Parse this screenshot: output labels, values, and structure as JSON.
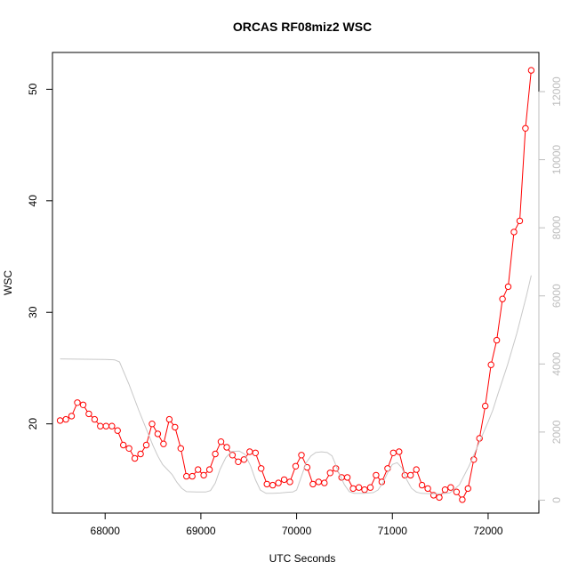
{
  "chart_data": {
    "type": "line",
    "title": "ORCAS RF08miz2 WSC",
    "xlabel": "UTC Seconds",
    "ylabel": "WSC",
    "x_ticks": [
      68000,
      69000,
      70000,
      71000,
      72000
    ],
    "y_ticks": [
      20,
      30,
      40,
      50
    ],
    "y2_ticks": [
      0,
      2000,
      4000,
      6000,
      8000,
      10000,
      12000
    ],
    "xlim": [
      67450,
      72530
    ],
    "ylim": [
      12.0,
      53.3
    ],
    "y2lim": [
      -380,
      13150
    ],
    "series": [
      {
        "axis": "left",
        "color": "#ff0000",
        "marker": "open-circle",
        "points": [
          [
            67530,
            20.3
          ],
          [
            67590,
            20.4
          ],
          [
            67650,
            20.7
          ],
          [
            67710,
            21.9
          ],
          [
            67770,
            21.7
          ],
          [
            67830,
            20.9
          ],
          [
            67890,
            20.4
          ],
          [
            67950,
            19.8
          ],
          [
            68010,
            19.8
          ],
          [
            68070,
            19.8
          ],
          [
            68130,
            19.4
          ],
          [
            68190,
            18.1
          ],
          [
            68250,
            17.8
          ],
          [
            68310,
            16.9
          ],
          [
            68370,
            17.3
          ],
          [
            68430,
            18.1
          ],
          [
            68490,
            20.0
          ],
          [
            68550,
            19.1
          ],
          [
            68610,
            18.2
          ],
          [
            68670,
            20.4
          ],
          [
            68730,
            19.7
          ],
          [
            68790,
            17.8
          ],
          [
            68850,
            15.3
          ],
          [
            68910,
            15.3
          ],
          [
            68970,
            15.9
          ],
          [
            69030,
            15.4
          ],
          [
            69090,
            15.9
          ],
          [
            69150,
            17.3
          ],
          [
            69210,
            18.4
          ],
          [
            69270,
            17.9
          ],
          [
            69330,
            17.2
          ],
          [
            69390,
            16.6
          ],
          [
            69450,
            16.8
          ],
          [
            69510,
            17.5
          ],
          [
            69570,
            17.4
          ],
          [
            69630,
            16.0
          ],
          [
            69690,
            14.6
          ],
          [
            69750,
            14.5
          ],
          [
            69810,
            14.7
          ],
          [
            69870,
            15.0
          ],
          [
            69930,
            14.8
          ],
          [
            69990,
            16.2
          ],
          [
            70050,
            17.2
          ],
          [
            70110,
            16.1
          ],
          [
            70170,
            14.6
          ],
          [
            70230,
            14.8
          ],
          [
            70290,
            14.7
          ],
          [
            70350,
            15.6
          ],
          [
            70410,
            16.0
          ],
          [
            70470,
            15.2
          ],
          [
            70530,
            15.2
          ],
          [
            70590,
            14.2
          ],
          [
            70650,
            14.3
          ],
          [
            70710,
            14.1
          ],
          [
            70770,
            14.3
          ],
          [
            70830,
            15.4
          ],
          [
            70890,
            14.8
          ],
          [
            70950,
            16.0
          ],
          [
            71010,
            17.4
          ],
          [
            71070,
            17.5
          ],
          [
            71130,
            15.4
          ],
          [
            71190,
            15.4
          ],
          [
            71250,
            15.9
          ],
          [
            71310,
            14.5
          ],
          [
            71370,
            14.2
          ],
          [
            71430,
            13.6
          ],
          [
            71490,
            13.4
          ],
          [
            71550,
            14.1
          ],
          [
            71610,
            14.3
          ],
          [
            71670,
            13.9
          ],
          [
            71730,
            13.2
          ],
          [
            71790,
            14.2
          ],
          [
            71850,
            16.8
          ],
          [
            71910,
            18.7
          ],
          [
            71970,
            21.6
          ],
          [
            72030,
            25.3
          ],
          [
            72090,
            27.5
          ],
          [
            72150,
            31.2
          ],
          [
            72210,
            32.3
          ],
          [
            72270,
            37.2
          ],
          [
            72330,
            38.2
          ],
          [
            72390,
            46.5
          ],
          [
            72450,
            51.7
          ]
        ]
      },
      {
        "axis": "right",
        "color": "#c8c8c8",
        "marker": "none",
        "points": [
          [
            67530,
            4150
          ],
          [
            67800,
            4140
          ],
          [
            68000,
            4130
          ],
          [
            68100,
            4120
          ],
          [
            68150,
            4060
          ],
          [
            68250,
            3400
          ],
          [
            68350,
            2650
          ],
          [
            68450,
            1950
          ],
          [
            68500,
            1600
          ],
          [
            68550,
            1300
          ],
          [
            68600,
            1050
          ],
          [
            68650,
            900
          ],
          [
            68700,
            750
          ],
          [
            68750,
            520
          ],
          [
            68800,
            350
          ],
          [
            68850,
            250
          ],
          [
            68950,
            240
          ],
          [
            69050,
            240
          ],
          [
            69100,
            280
          ],
          [
            69150,
            500
          ],
          [
            69200,
            900
          ],
          [
            69260,
            1250
          ],
          [
            69320,
            1430
          ],
          [
            69400,
            1440
          ],
          [
            69460,
            1350
          ],
          [
            69520,
            1000
          ],
          [
            69570,
            600
          ],
          [
            69620,
            300
          ],
          [
            69680,
            200
          ],
          [
            69750,
            200
          ],
          [
            69830,
            210
          ],
          [
            69900,
            230
          ],
          [
            69960,
            240
          ],
          [
            70000,
            300
          ],
          [
            70050,
            700
          ],
          [
            70100,
            1100
          ],
          [
            70150,
            1300
          ],
          [
            70200,
            1400
          ],
          [
            70260,
            1420
          ],
          [
            70320,
            1400
          ],
          [
            70370,
            1300
          ],
          [
            70400,
            1100
          ],
          [
            70440,
            800
          ],
          [
            70500,
            450
          ],
          [
            70550,
            250
          ],
          [
            70600,
            200
          ],
          [
            70700,
            200
          ],
          [
            70800,
            220
          ],
          [
            70850,
            300
          ],
          [
            70900,
            500
          ],
          [
            70950,
            800
          ],
          [
            71000,
            1050
          ],
          [
            71050,
            1100
          ],
          [
            71100,
            950
          ],
          [
            71150,
            600
          ],
          [
            71200,
            350
          ],
          [
            71250,
            240
          ],
          [
            71300,
            200
          ],
          [
            71400,
            190
          ],
          [
            71500,
            190
          ],
          [
            71600,
            210
          ],
          [
            71700,
            450
          ],
          [
            71800,
            1000
          ],
          [
            71900,
            1650
          ],
          [
            72000,
            2300
          ],
          [
            72050,
            2650
          ],
          [
            72100,
            3100
          ],
          [
            72200,
            3950
          ],
          [
            72300,
            4900
          ],
          [
            72400,
            6000
          ],
          [
            72450,
            6600
          ]
        ]
      }
    ]
  }
}
